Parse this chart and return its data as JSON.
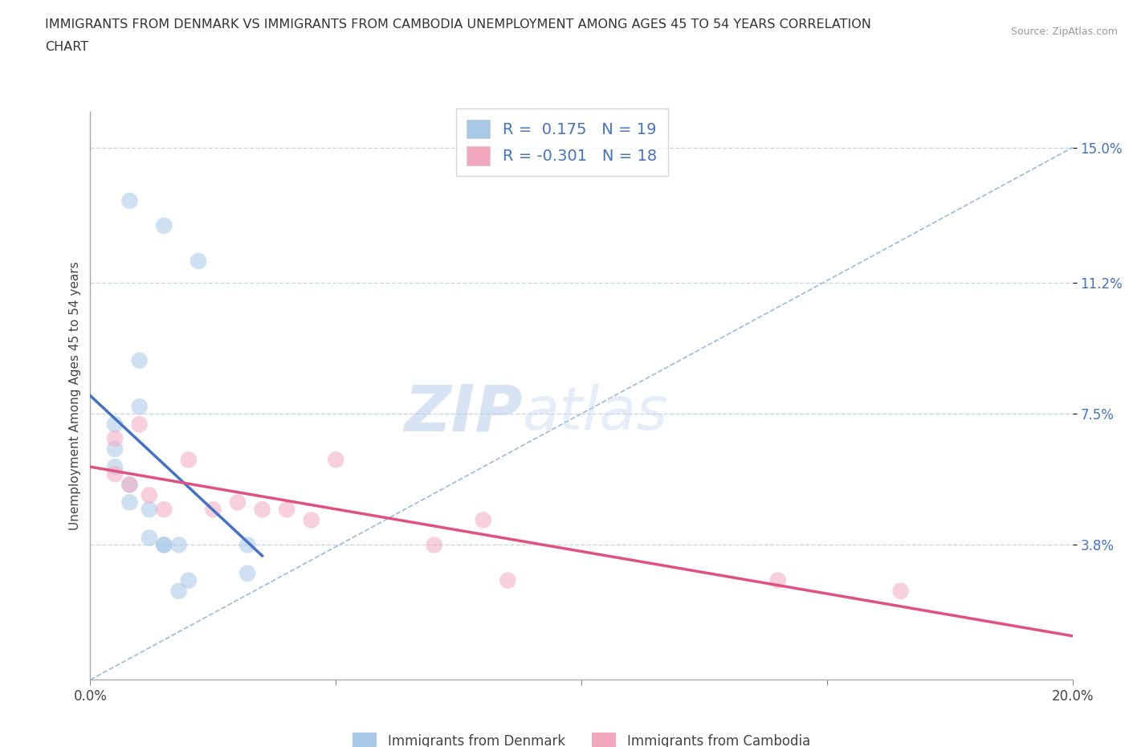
{
  "title_line1": "IMMIGRANTS FROM DENMARK VS IMMIGRANTS FROM CAMBODIA UNEMPLOYMENT AMONG AGES 45 TO 54 YEARS CORRELATION",
  "title_line2": "CHART",
  "source_text": "Source: ZipAtlas.com",
  "ylabel": "Unemployment Among Ages 45 to 54 years",
  "xlim": [
    0.0,
    0.2
  ],
  "ylim": [
    0.0,
    0.16
  ],
  "xticks": [
    0.0,
    0.05,
    0.1,
    0.15,
    0.2
  ],
  "xticklabels": [
    "0.0%",
    "",
    "",
    "",
    "20.0%"
  ],
  "ytick_positions": [
    0.038,
    0.075,
    0.112,
    0.15
  ],
  "ytick_labels": [
    "3.8%",
    "7.5%",
    "11.2%",
    "15.0%"
  ],
  "denmark_color": "#a8c8e8",
  "cambodia_color": "#f4a8c0",
  "denmark_line_color": "#4472c4",
  "cambodia_line_color": "#e05080",
  "diagonal_color": "#a0b8d8",
  "R_denmark": 0.175,
  "N_denmark": 19,
  "R_cambodia": -0.301,
  "N_cambodia": 18,
  "denmark_x": [
    0.008,
    0.015,
    0.022,
    0.01,
    0.01,
    0.005,
    0.005,
    0.005,
    0.008,
    0.008,
    0.012,
    0.012,
    0.015,
    0.015,
    0.018,
    0.02,
    0.018,
    0.032,
    0.032
  ],
  "denmark_y": [
    0.135,
    0.128,
    0.118,
    0.09,
    0.077,
    0.072,
    0.065,
    0.06,
    0.055,
    0.05,
    0.048,
    0.04,
    0.038,
    0.038,
    0.038,
    0.028,
    0.025,
    0.038,
    0.03
  ],
  "cambodia_x": [
    0.005,
    0.005,
    0.008,
    0.01,
    0.012,
    0.015,
    0.02,
    0.025,
    0.03,
    0.035,
    0.04,
    0.045,
    0.05,
    0.07,
    0.08,
    0.085,
    0.14,
    0.165
  ],
  "cambodia_y": [
    0.068,
    0.058,
    0.055,
    0.072,
    0.052,
    0.048,
    0.062,
    0.048,
    0.05,
    0.048,
    0.048,
    0.045,
    0.062,
    0.038,
    0.045,
    0.028,
    0.028,
    0.025
  ],
  "watermark_zip": "ZIP",
  "watermark_atlas": "atlas",
  "background_color": "#ffffff",
  "grid_color": "#c8d4e8",
  "marker_size": 220,
  "marker_alpha": 0.55,
  "legend_R_color": "#4472c4"
}
